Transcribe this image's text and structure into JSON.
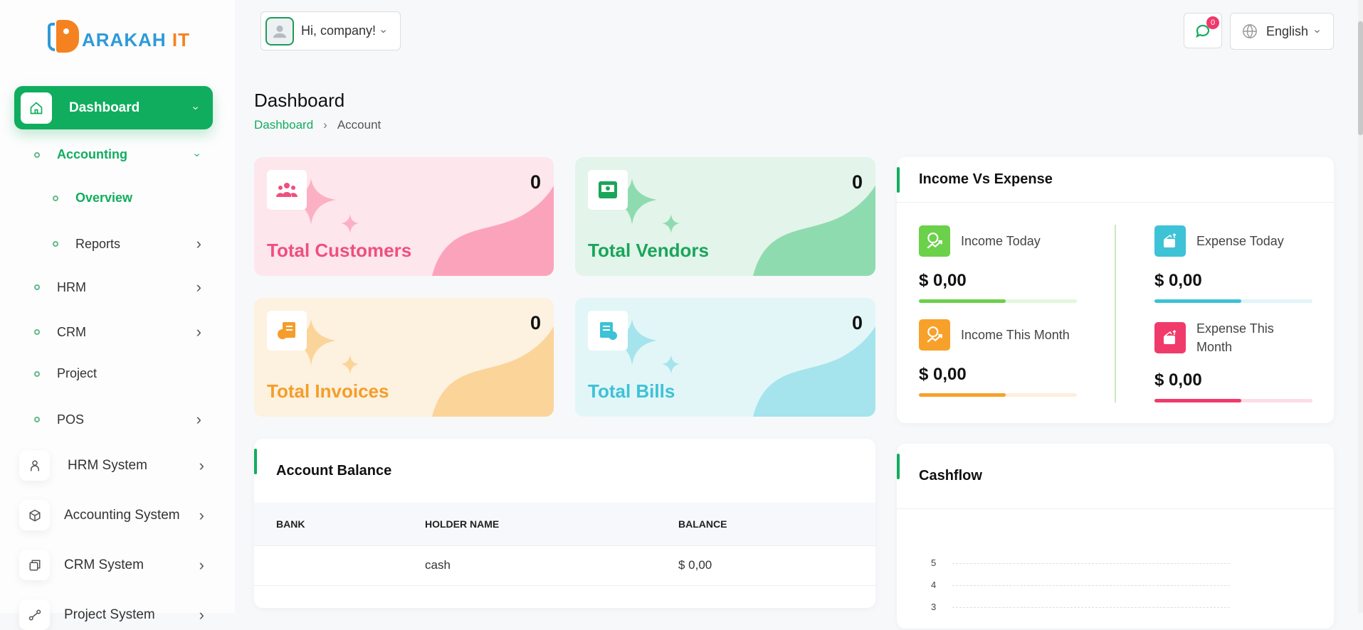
{
  "brand": {
    "logo_text": "ARAKAH IT",
    "colors": {
      "primary": "#10ad5e",
      "logo_blue": "#2e9ad8",
      "logo_orange": "#f58220"
    }
  },
  "header": {
    "greeting": "Hi, company!",
    "notification_count": "0",
    "language": "English"
  },
  "sidebar": {
    "dashboard": "Dashboard",
    "sub_items": [
      {
        "label": "Accounting",
        "active": true,
        "expanded": true
      },
      {
        "label": "Overview",
        "active": true
      },
      {
        "label": "Reports"
      },
      {
        "label": "HRM"
      },
      {
        "label": "CRM"
      },
      {
        "label": "Project"
      },
      {
        "label": "POS"
      }
    ],
    "systems": [
      {
        "label": "HRM System",
        "icon": "user-icon"
      },
      {
        "label": "Accounting System",
        "icon": "box-icon"
      },
      {
        "label": "CRM System",
        "icon": "crm-icon"
      },
      {
        "label": "Project System",
        "icon": "share-icon"
      }
    ]
  },
  "page": {
    "title": "Dashboard",
    "breadcrumb": [
      "Dashboard",
      "Account"
    ]
  },
  "stats": [
    {
      "label": "Total Customers",
      "value": "0",
      "color": "#ef4f7f",
      "icon": "users-icon"
    },
    {
      "label": "Total Vendors",
      "value": "0",
      "color": "#1aa55a",
      "icon": "store-icon"
    },
    {
      "label": "Total Invoices",
      "value": "0",
      "color": "#f59d2a",
      "icon": "invoice-icon"
    },
    {
      "label": "Total Bills",
      "value": "0",
      "color": "#3dc2d6",
      "icon": "bill-icon"
    }
  ],
  "income_expense": {
    "title": "Income Vs Expense",
    "items": [
      {
        "label": "Income Today",
        "value": "$ 0,00",
        "color": "#6bd04a",
        "progress": 55
      },
      {
        "label": "Expense Today",
        "value": "$ 0,00",
        "color": "#3dc2d6",
        "progress": 55
      },
      {
        "label": "Income This Month",
        "value": "$ 0,00",
        "color": "#f7a12a",
        "progress": 55
      },
      {
        "label": "Expense This Month",
        "value": "$ 0,00",
        "color": "#f03a6a",
        "progress": 55
      }
    ]
  },
  "account_balance": {
    "title": "Account Balance",
    "columns": [
      "BANK",
      "HOLDER NAME",
      "BALANCE"
    ],
    "rows": [
      [
        "",
        "cash",
        "$ 0,00"
      ]
    ]
  },
  "cashflow": {
    "title": "Cashflow"
  },
  "chart_data": {
    "type": "line",
    "title": "Cashflow",
    "y_ticks": [
      "5",
      "4",
      "3"
    ],
    "grid": "dashed horizontal",
    "series": []
  }
}
